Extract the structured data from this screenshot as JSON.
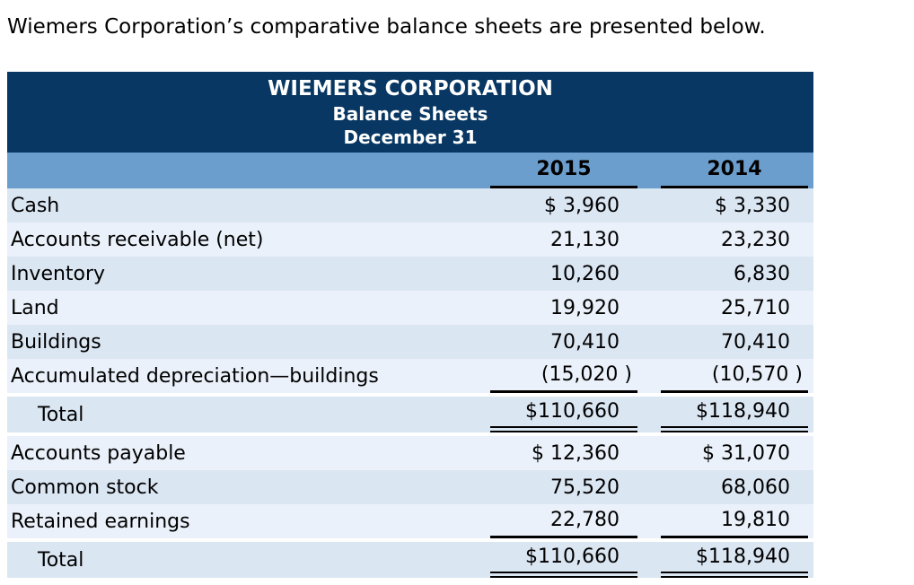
{
  "intro": "Wiemers Corporation’s comparative balance sheets are presented below.",
  "table": {
    "title": "WIEMERS CORPORATION",
    "subtitle1": "Balance Sheets",
    "subtitle2": "December 31",
    "columns": [
      "2015",
      "2014"
    ],
    "rows": [
      {
        "label": "Cash",
        "y2015": "$ 3,960",
        "y2014": "$ 3,330"
      },
      {
        "label": "Accounts receivable (net)",
        "y2015": "21,130",
        "y2014": "23,230"
      },
      {
        "label": "Inventory",
        "y2015": "10,260",
        "y2014": "6,830"
      },
      {
        "label": "Land",
        "y2015": "19,920",
        "y2014": "25,710"
      },
      {
        "label": "Buildings",
        "y2015": "70,410",
        "y2014": "70,410"
      },
      {
        "label": "Accumulated depreciation—buildings",
        "y2015": "(15,020 )",
        "y2014": "(10,570 )"
      },
      {
        "label": "Total",
        "y2015": "$110,660",
        "y2014": "$118,940"
      },
      {
        "label": "Accounts payable",
        "y2015": "$ 12,360",
        "y2014": "$ 31,070"
      },
      {
        "label": "Common stock",
        "y2015": "75,520",
        "y2014": "68,060"
      },
      {
        "label": "Retained earnings",
        "y2015": "22,780",
        "y2014": "19,810"
      },
      {
        "label": "Total",
        "y2015": "$110,660",
        "y2014": "$118,940"
      }
    ]
  },
  "colors": {
    "header_bg": "#083763",
    "band_bg": "#6b9ecd",
    "rowA": "#dbe6f3",
    "rowB": "#eaf1fa",
    "line": "#000000",
    "header_text": "#ffffff",
    "text": "#000000"
  }
}
